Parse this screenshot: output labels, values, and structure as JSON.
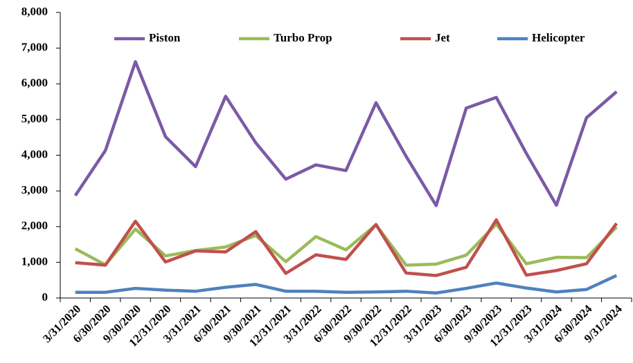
{
  "chart_data": {
    "type": "line",
    "categories": [
      "3/31/2020",
      "6/30/2020",
      "9/30/2020",
      "12/31/2020",
      "3/31/2021",
      "6/30/2021",
      "9/30/2021",
      "12/31/2021",
      "3/31/2022",
      "6/30/2022",
      "9/30/2022",
      "12/31/2022",
      "3/31/2023",
      "6/30/2023",
      "9/30/2023",
      "12/31/2023",
      "3/31/2024",
      "6/30/2024",
      "9/31/2024"
    ],
    "series": [
      {
        "name": "Piston",
        "color": "#7b5aa6",
        "values": [
          2870,
          4130,
          6620,
          4520,
          3680,
          5650,
          4350,
          3330,
          3730,
          3570,
          5470,
          3970,
          2590,
          5320,
          5620,
          4050,
          2600,
          5050,
          5780
        ]
      },
      {
        "name": "Turbo Prop",
        "color": "#9bbb59",
        "values": [
          1380,
          930,
          1930,
          1180,
          1330,
          1430,
          1750,
          1020,
          1720,
          1350,
          2050,
          920,
          950,
          1200,
          2070,
          960,
          1140,
          1130,
          1990
        ]
      },
      {
        "name": "Jet",
        "color": "#c0504d",
        "values": [
          990,
          920,
          2150,
          1010,
          1320,
          1290,
          1860,
          690,
          1210,
          1080,
          2060,
          700,
          630,
          860,
          2190,
          640,
          770,
          960,
          2090
        ]
      },
      {
        "name": "Helicopter",
        "color": "#4f81bd",
        "values": [
          160,
          160,
          270,
          220,
          190,
          300,
          380,
          190,
          190,
          160,
          170,
          190,
          140,
          270,
          420,
          280,
          170,
          240,
          630
        ]
      }
    ],
    "ylim": [
      0,
      8000
    ],
    "yticks": [
      0,
      {
        "value": 1000,
        "label": "1,000"
      },
      {
        "value": 2000,
        "label": "2,000"
      },
      {
        "value": 3000,
        "label": "3,000"
      },
      {
        "value": 4000,
        "label": "4,000"
      },
      {
        "value": 5000,
        "label": "5,000"
      },
      {
        "value": 6000,
        "label": "6,000"
      },
      {
        "value": 7000,
        "label": "7,000"
      },
      {
        "value": 8000,
        "label": "8,000"
      }
    ],
    "grid": false,
    "legend": "top"
  }
}
